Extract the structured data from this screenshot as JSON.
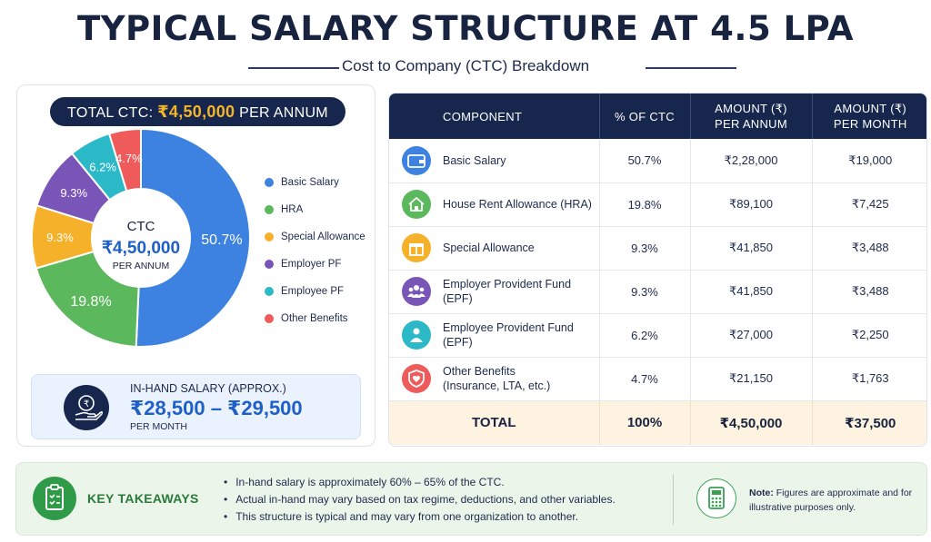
{
  "title": "TYPICAL SALARY STRUCTURE AT 4.5 LPA",
  "subtitle": "Cost to Company (CTC) Breakdown",
  "total_ctc": {
    "label": "TOTAL CTC:",
    "amount": "₹4,50,000",
    "suffix": "PER ANNUM"
  },
  "donut_center": {
    "label": "CTC",
    "amount": "₹4,50,000",
    "sub": "PER ANNUM"
  },
  "chart_data": {
    "type": "pie",
    "categories": [
      "Basic Salary",
      "HRA",
      "Special Allowance",
      "Employer PF",
      "Employee PF",
      "Other Benefits"
    ],
    "values": [
      50.7,
      19.8,
      9.3,
      9.3,
      6.2,
      4.7
    ],
    "slice_labels": [
      "50.7%",
      "19.8%",
      "9.3%",
      "9.3%",
      "6.2%",
      "4.7%"
    ],
    "colors": [
      "#3d82e0",
      "#5cb85c",
      "#f6b12a",
      "#7a55b8",
      "#2bb9c8",
      "#ef5a5a"
    ],
    "legend_position": "right",
    "donut": true
  },
  "in_hand": {
    "label": "IN-HAND SALARY (APPROX.)",
    "value": "₹28,500 – ₹29,500",
    "sub": "PER MONTH"
  },
  "table": {
    "headers": {
      "component": "COMPONENT",
      "pct": "% OF CTC",
      "annual_1": "AMOUNT (₹)",
      "annual_2": "PER ANNUM",
      "monthly_1": "AMOUNT (₹)",
      "monthly_2": "PER MONTH"
    },
    "rows": [
      {
        "icon": "wallet-icon",
        "color": "#3d82e0",
        "name_1": "Basic Salary",
        "name_2": "",
        "pct": "50.7%",
        "annual": "₹2,28,000",
        "monthly": "₹19,000"
      },
      {
        "icon": "house-icon",
        "color": "#5cb85c",
        "name_1": "House Rent Allowance (HRA)",
        "name_2": "",
        "pct": "19.8%",
        "annual": "₹89,100",
        "monthly": "₹7,425"
      },
      {
        "icon": "gift-icon",
        "color": "#f6b12a",
        "name_1": "Special Allowance",
        "name_2": "",
        "pct": "9.3%",
        "annual": "₹41,850",
        "monthly": "₹3,488"
      },
      {
        "icon": "people-icon",
        "color": "#7a55b8",
        "name_1": "Employer Provident Fund",
        "name_2": "(EPF)",
        "pct": "9.3%",
        "annual": "₹41,850",
        "monthly": "₹3,488"
      },
      {
        "icon": "person-icon",
        "color": "#2bb9c8",
        "name_1": "Employee Provident Fund",
        "name_2": "(EPF)",
        "pct": "6.2%",
        "annual": "₹27,000",
        "monthly": "₹2,250"
      },
      {
        "icon": "shield-heart-icon",
        "color": "#ef5a5a",
        "name_1": "Other Benefits",
        "name_2": "(Insurance, LTA, etc.)",
        "pct": "4.7%",
        "annual": "₹21,150",
        "monthly": "₹1,763"
      }
    ],
    "total": {
      "label": "TOTAL",
      "pct": "100%",
      "annual": "₹4,50,000",
      "monthly": "₹37,500"
    }
  },
  "takeaways": {
    "label": "KEY TAKEAWAYS",
    "items": [
      "In-hand salary is approximately 60% – 65% of the CTC.",
      "Actual in-hand may vary based on tax regime, deductions, and other variables.",
      "This structure is typical and may vary from one organization to another."
    ],
    "note_bold": "Note:",
    "note_text": "Figures are approximate and for illustrative purposes only."
  }
}
